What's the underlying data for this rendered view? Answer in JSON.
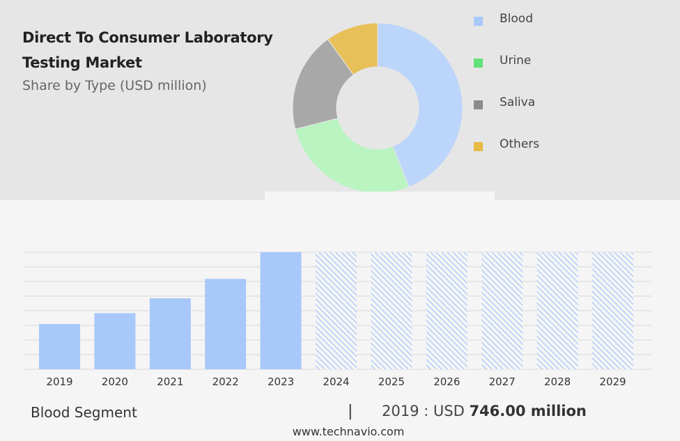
{
  "title": "Direct To Consumer Laboratory Testing Market",
  "subtitle": "Share by Type (USD million)",
  "legend": [
    {
      "label": "Blood",
      "color": "#a8c8fa"
    },
    {
      "label": "Urine",
      "color": "#62e07a"
    },
    {
      "label": "Saliva",
      "color": "#8c8c8c"
    },
    {
      "label": "Others",
      "color": "#e6bb44"
    }
  ],
  "footer": {
    "segment": "Blood Segment",
    "separator": "|",
    "value_prefix": "2019 : USD",
    "value_bold": "746.00 million",
    "url": "www.technavio.com"
  },
  "chart_data": [
    {
      "type": "pie",
      "title": "",
      "categories": [
        "Blood",
        "Urine",
        "Saliva",
        "Others"
      ],
      "values": [
        44,
        27,
        19,
        10
      ],
      "colors": [
        "#bcd5fb",
        "#b9f4c1",
        "#a8a8a8",
        "#e8c05a"
      ]
    },
    {
      "type": "bar",
      "title": "",
      "categories": [
        "2019",
        "2020",
        "2021",
        "2022",
        "2023",
        "2024",
        "2025",
        "2026",
        "2027",
        "2028",
        "2029"
      ],
      "series": [
        {
          "values": [
            746,
            925,
            1170,
            1490,
            1930,
            null,
            null,
            null,
            null,
            null,
            null
          ]
        }
      ],
      "forecast_categories": [
        "2024",
        "2025",
        "2026",
        "2027",
        "2028",
        "2029"
      ],
      "ylim": [
        0,
        1930
      ],
      "grid": true,
      "bar_color": "#a8c8fa"
    }
  ]
}
